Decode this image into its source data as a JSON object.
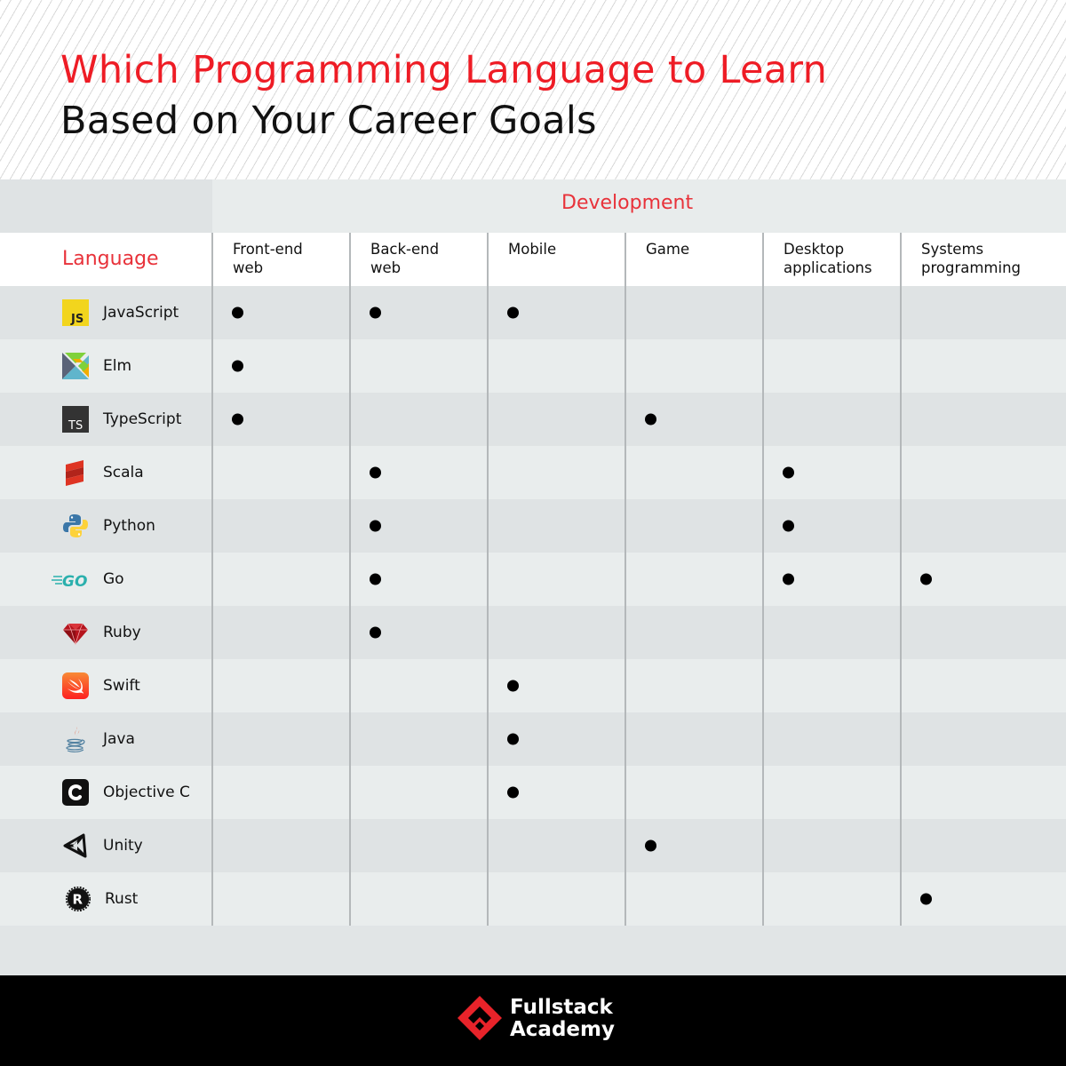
{
  "title": {
    "line1": "Which Programming Language to Learn",
    "line2": "Based on Your Career Goals",
    "line1_color": "#ee1c25",
    "line2_color": "#111111"
  },
  "table": {
    "group_header": "Development",
    "language_header": "Language",
    "columns": [
      {
        "line1": "Front-end",
        "line2": "web"
      },
      {
        "line1": "Back-end",
        "line2": "web"
      },
      {
        "line1": "Mobile",
        "line2": ""
      },
      {
        "line1": "Game",
        "line2": ""
      },
      {
        "line1": "Desktop",
        "line2": "applications"
      },
      {
        "line1": "Systems",
        "line2": "programming"
      }
    ],
    "rows": [
      {
        "language": "JavaScript",
        "icon": "javascript-icon",
        "marks": [
          true,
          true,
          true,
          false,
          false,
          false
        ]
      },
      {
        "language": "Elm",
        "icon": "elm-icon",
        "marks": [
          true,
          false,
          false,
          false,
          false,
          false
        ]
      },
      {
        "language": "TypeScript",
        "icon": "typescript-icon",
        "marks": [
          true,
          false,
          false,
          true,
          false,
          false
        ]
      },
      {
        "language": "Scala",
        "icon": "scala-icon",
        "marks": [
          false,
          true,
          false,
          false,
          true,
          false
        ]
      },
      {
        "language": "Python",
        "icon": "python-icon",
        "marks": [
          false,
          true,
          false,
          false,
          true,
          false
        ]
      },
      {
        "language": "Go",
        "icon": "go-icon",
        "marks": [
          false,
          true,
          false,
          false,
          true,
          true
        ]
      },
      {
        "language": "Ruby",
        "icon": "ruby-icon",
        "marks": [
          false,
          true,
          false,
          false,
          false,
          false
        ]
      },
      {
        "language": "Swift",
        "icon": "swift-icon",
        "marks": [
          false,
          false,
          true,
          false,
          false,
          false
        ]
      },
      {
        "language": "Java",
        "icon": "java-icon",
        "marks": [
          false,
          false,
          true,
          false,
          false,
          false
        ]
      },
      {
        "language": "Objective C",
        "icon": "objective-c-icon",
        "marks": [
          false,
          false,
          true,
          false,
          false,
          false
        ]
      },
      {
        "language": "Unity",
        "icon": "unity-icon",
        "marks": [
          false,
          false,
          false,
          true,
          false,
          false
        ]
      },
      {
        "language": "Rust",
        "icon": "rust-icon",
        "marks": [
          false,
          false,
          false,
          false,
          false,
          true
        ]
      }
    ]
  },
  "footer": {
    "brand_line1": "Fullstack",
    "brand_line2": "Academy",
    "brand_color": "#e8232a"
  },
  "colors": {
    "accent_red": "#e8323a",
    "row_dark": "#dfe3e4",
    "row_light": "#e9eded",
    "divider": "#b4b8ba"
  }
}
